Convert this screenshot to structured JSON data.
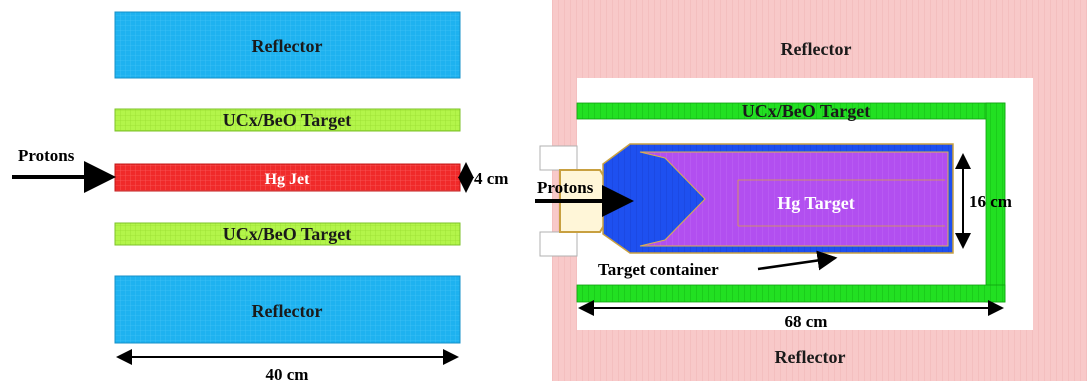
{
  "left_panel": {
    "reflector_top": "Reflector",
    "target_top": "UCx/BeO Target",
    "hg_jet": "Hg Jet",
    "target_bottom": "UCx/BeO Target",
    "reflector_bottom": "Reflector",
    "protons": "Protons",
    "jet_thickness": "4 cm",
    "width": "40 cm"
  },
  "right_panel": {
    "reflector_top": "Reflector",
    "target": "UCx/BeO Target",
    "protons": "Protons",
    "hg_target": "Hg Target",
    "container": "Target container",
    "height": "16 cm",
    "length": "68 cm",
    "reflector_bottom": "Reflector"
  },
  "colors": {
    "reflector_blue": "#1eb2f0",
    "target_green": "#b3f54a",
    "hg_jet_red": "#f02a2a",
    "reflector_pink": "#f8c9c9",
    "target_bright_green": "#22e022",
    "container_blue": "#1e50f0",
    "hg_purple": "#b24ff0"
  }
}
